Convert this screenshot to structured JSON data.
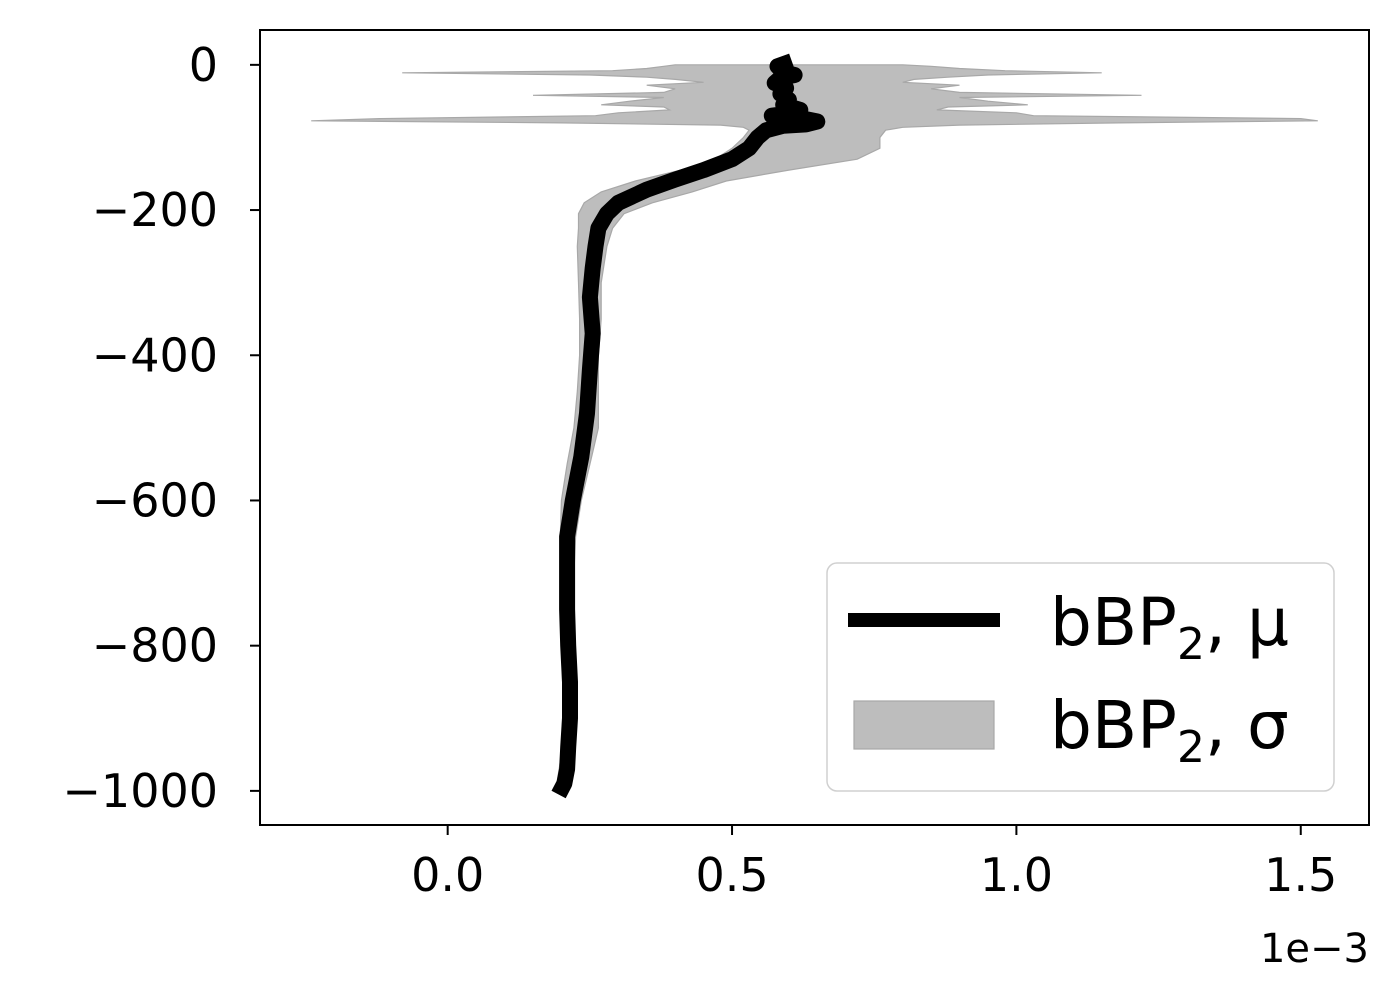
{
  "chart_data": {
    "type": "line",
    "title": "",
    "xlabel": "",
    "ylabel": "",
    "x_multiplier_label": "1e−3",
    "xlim": [
      -0.00033,
      0.00162
    ],
    "ylim": [
      -1047,
      48
    ],
    "x_ticks": [
      0.0,
      0.0005,
      0.001,
      0.0015
    ],
    "x_tick_labels": [
      "0.0",
      "0.5",
      "1.0",
      "1.5"
    ],
    "y_ticks": [
      0,
      -200,
      -400,
      -600,
      -800,
      -1000
    ],
    "y_tick_labels": [
      "0",
      "−200",
      "−400",
      "−600",
      "−800",
      "−1000"
    ],
    "grid": false,
    "legend_position": "lower-right",
    "colors": {
      "mean": "#000000",
      "band": "#bdbdbd",
      "band_edge": "#a8a8a8"
    },
    "series": [
      {
        "name": "bBP",
        "name_sub": "2",
        "name_suffix": ", μ",
        "kind": "line",
        "points": [
          [
            0.000605,
            5
          ],
          [
            0.00058,
            -2
          ],
          [
            0.00059,
            -10
          ],
          [
            0.00061,
            -14
          ],
          [
            0.000585,
            -18
          ],
          [
            0.000575,
            -25
          ],
          [
            0.000595,
            -32
          ],
          [
            0.000585,
            -40
          ],
          [
            0.0006,
            -48
          ],
          [
            0.00059,
            -55
          ],
          [
            0.00062,
            -62
          ],
          [
            0.0006,
            -67
          ],
          [
            0.00057,
            -70
          ],
          [
            0.000625,
            -74
          ],
          [
            0.00065,
            -78
          ],
          [
            0.00063,
            -82
          ],
          [
            0.00059,
            -84
          ],
          [
            0.00056,
            -90
          ],
          [
            0.000545,
            -100
          ],
          [
            0.00053,
            -115
          ],
          [
            0.0005,
            -130
          ],
          [
            0.00045,
            -145
          ],
          [
            0.0004,
            -158
          ],
          [
            0.00035,
            -172
          ],
          [
            0.0003,
            -190
          ],
          [
            0.00028,
            -205
          ],
          [
            0.000265,
            -225
          ],
          [
            0.00026,
            -250
          ],
          [
            0.000255,
            -280
          ],
          [
            0.00025,
            -320
          ],
          [
            0.000255,
            -370
          ],
          [
            0.00025,
            -420
          ],
          [
            0.000245,
            -480
          ],
          [
            0.000235,
            -540
          ],
          [
            0.00022,
            -600
          ],
          [
            0.00021,
            -650
          ],
          [
            0.00021,
            -700
          ],
          [
            0.00021,
            -750
          ],
          [
            0.000212,
            -800
          ],
          [
            0.000215,
            -850
          ],
          [
            0.000215,
            -900
          ],
          [
            0.000212,
            -940
          ],
          [
            0.00021,
            -970
          ],
          [
            0.000205,
            -990
          ],
          [
            0.000195,
            -1005
          ]
        ]
      },
      {
        "name": "bBP",
        "name_sub": "2",
        "name_suffix": ", σ",
        "kind": "band",
        "depth": [
          0,
          -2,
          -5,
          -8,
          -11,
          -14,
          -17,
          -20,
          -24,
          -28,
          -33,
          -38,
          -42,
          -45,
          -50,
          -55,
          -58,
          -62,
          -66,
          -70,
          -74,
          -77,
          -80,
          -83,
          -86,
          -90,
          -100,
          -115,
          -130,
          -145,
          -160,
          -175,
          -190,
          -205,
          -225,
          -250,
          -300,
          -350,
          -400,
          -450,
          -500,
          -550,
          -600,
          -650,
          -700,
          -750,
          -800,
          -850,
          -900,
          -950,
          -1000
        ],
        "upper": [
          0.0008,
          0.00085,
          0.0009,
          0.00098,
          0.00115,
          0.00095,
          0.00088,
          0.00082,
          0.0008,
          0.0009,
          0.00085,
          0.0009,
          0.00122,
          0.0009,
          0.00095,
          0.00102,
          0.00088,
          0.00086,
          0.001,
          0.00103,
          0.0015,
          0.00153,
          0.00118,
          0.0009,
          0.0008,
          0.00077,
          0.00076,
          0.00076,
          0.00072,
          0.0006,
          0.00049,
          0.00043,
          0.00036,
          0.00031,
          0.00029,
          0.00028,
          0.00027,
          0.00027,
          0.000265,
          0.000265,
          0.000265,
          0.00025,
          0.000235,
          0.000225,
          0.000222,
          0.000222,
          0.000222,
          0.000222,
          0.00022,
          0.000218,
          0.00021
        ],
        "lower": [
          0.0004,
          0.00038,
          0.00035,
          0.00029,
          -8e-05,
          0.00025,
          0.00035,
          0.0004,
          0.00045,
          0.00035,
          0.0004,
          0.00038,
          0.00015,
          0.00038,
          0.00032,
          0.00027,
          0.00038,
          0.00039,
          0.0003,
          0.00026,
          -0.00012,
          -0.00024,
          0.0002,
          0.00048,
          0.00052,
          0.00053,
          0.00052,
          0.0005,
          0.00047,
          0.00041,
          0.00033,
          0.00027,
          0.00024,
          0.00023,
          0.00023,
          0.000228,
          0.00023,
          0.000232,
          0.000232,
          0.000228,
          0.000222,
          0.00021,
          0.0002,
          0.000198,
          0.000198,
          0.0002,
          0.0002,
          0.000202,
          0.000202,
          0.0002,
          0.00019
        ]
      }
    ]
  }
}
